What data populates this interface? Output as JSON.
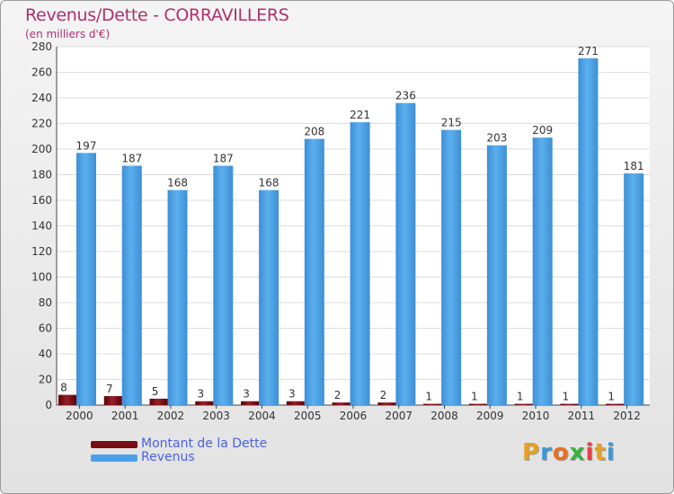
{
  "chart_data": {
    "type": "bar",
    "title": "Revenus/Dette - CORRAVILLERS",
    "subtitle": "(en milliers d'€)",
    "xlabel": "",
    "ylabel": "",
    "ylim": [
      0,
      280
    ],
    "yticks": [
      0,
      20,
      40,
      60,
      80,
      100,
      120,
      140,
      160,
      180,
      200,
      220,
      240,
      260,
      280
    ],
    "grid": true,
    "categories": [
      "2000",
      "2001",
      "2002",
      "2003",
      "2004",
      "2005",
      "2006",
      "2007",
      "2008",
      "2009",
      "2010",
      "2011",
      "2012"
    ],
    "series": [
      {
        "name": "Montant de la Dette",
        "color": "#7a0a12",
        "values": [
          8,
          7,
          5,
          3,
          3,
          3,
          2,
          2,
          1,
          1,
          1,
          1,
          1
        ]
      },
      {
        "name": "Revenus",
        "color": "#4aa0e6",
        "values": [
          197,
          187,
          168,
          187,
          168,
          208,
          221,
          236,
          215,
          203,
          209,
          271,
          181
        ]
      }
    ],
    "legend": "bottom-left"
  },
  "brand": {
    "letters": [
      "P",
      "r",
      "o",
      "x",
      "i",
      "t",
      "i"
    ],
    "colors": [
      "#e8a020",
      "#3a9ad8",
      "#e87020",
      "#3ab040",
      "#e84040",
      "#e8a020",
      "#3a9ad8"
    ]
  }
}
